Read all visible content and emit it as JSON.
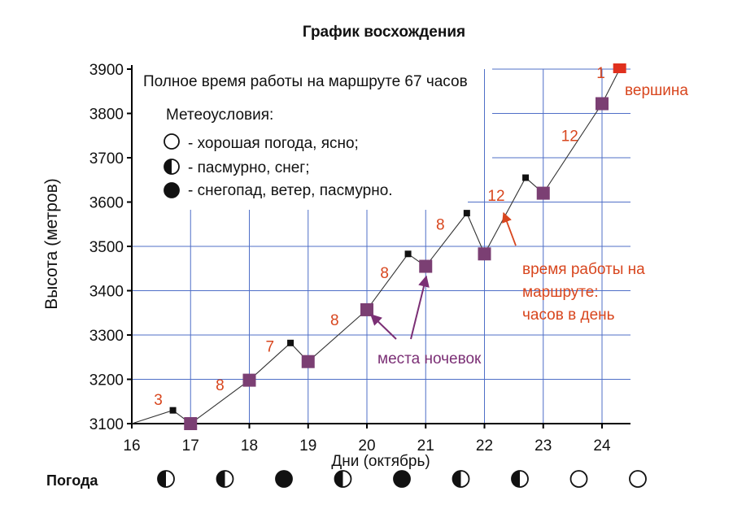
{
  "chart_data": {
    "type": "line",
    "title": "График восхождения",
    "xlabel": "Дни (октябрь)",
    "ylabel": "Высота (метров)",
    "xlim": [
      16,
      24.5
    ],
    "ylim": [
      3100,
      3900
    ],
    "xticks": [
      16,
      17,
      18,
      19,
      20,
      21,
      22,
      23,
      24
    ],
    "yticks": [
      3100,
      3200,
      3300,
      3400,
      3500,
      3600,
      3700,
      3800,
      3900
    ],
    "grid": true,
    "series": [
      {
        "points": [
          {
            "x": 16.0,
            "y": 3100
          },
          {
            "x": 16.7,
            "y": 3130
          },
          {
            "x": 17.0,
            "y": 3100
          },
          {
            "x": 18.0,
            "y": 3198
          },
          {
            "x": 18.7,
            "y": 3282
          },
          {
            "x": 19.0,
            "y": 3240
          },
          {
            "x": 20.0,
            "y": 3357
          },
          {
            "x": 20.7,
            "y": 3483
          },
          {
            "x": 21.0,
            "y": 3455
          },
          {
            "x": 21.7,
            "y": 3575
          },
          {
            "x": 22.0,
            "y": 3483
          },
          {
            "x": 22.7,
            "y": 3655
          },
          {
            "x": 23.0,
            "y": 3620
          },
          {
            "x": 24.0,
            "y": 3822
          },
          {
            "x": 24.3,
            "y": 3900
          }
        ]
      }
    ],
    "camps": [
      {
        "x": 17,
        "y": 3100
      },
      {
        "x": 18,
        "y": 3198
      },
      {
        "x": 19,
        "y": 3240
      },
      {
        "x": 20,
        "y": 3357
      },
      {
        "x": 21,
        "y": 3455
      },
      {
        "x": 22,
        "y": 3483
      },
      {
        "x": 23,
        "y": 3620
      },
      {
        "x": 24,
        "y": 3822
      }
    ],
    "high_points": [
      {
        "x": 16.7,
        "y": 3130
      },
      {
        "x": 18.7,
        "y": 3282
      },
      {
        "x": 20.7,
        "y": 3483
      },
      {
        "x": 21.7,
        "y": 3575
      },
      {
        "x": 22.7,
        "y": 3655
      }
    ],
    "summit": {
      "x": 24.3,
      "y": 3900,
      "label": "вершина"
    },
    "work_hours": [
      {
        "label": "3",
        "x": 16.45,
        "y": 3142
      },
      {
        "label": "8",
        "x": 17.5,
        "y": 3175
      },
      {
        "label": "7",
        "x": 18.35,
        "y": 3262
      },
      {
        "label": "8",
        "x": 19.45,
        "y": 3322
      },
      {
        "label": "8",
        "x": 20.3,
        "y": 3428
      },
      {
        "label": "8",
        "x": 21.25,
        "y": 3538
      },
      {
        "label": "12",
        "x": 22.2,
        "y": 3603
      },
      {
        "label": "12",
        "x": 23.45,
        "y": 3738
      },
      {
        "label": "1",
        "x": 23.98,
        "y": 3880
      }
    ],
    "annotations": {
      "total_time": "Полное время работы на маршруте 67 часов",
      "weather_legend_title": "Метеоусловия:",
      "weather_legend": [
        {
          "symbol": "clear",
          "text": "- хорошая погода, ясно;"
        },
        {
          "symbol": "half",
          "text": "- пасмурно, снег;"
        },
        {
          "symbol": "full",
          "text": "- снегопад, ветер, пасмурно."
        }
      ],
      "camps_label": "места ночевок",
      "hours_label": [
        "время работы на",
        "маршруте:",
        "часов в день"
      ]
    },
    "weather_row": {
      "label": "Погода",
      "symbols": [
        "half",
        "half",
        "full",
        "half",
        "full",
        "half",
        "half",
        "clear",
        "clear"
      ]
    },
    "colors": {
      "grid": "#4f6fc7",
      "line": "#333333",
      "camp": "#7b3f73",
      "high_point": "#111111",
      "summit": "#e0301e",
      "hours_text": "#d8461e",
      "camps_label": "#7b2f75",
      "axis": "#000000"
    }
  }
}
